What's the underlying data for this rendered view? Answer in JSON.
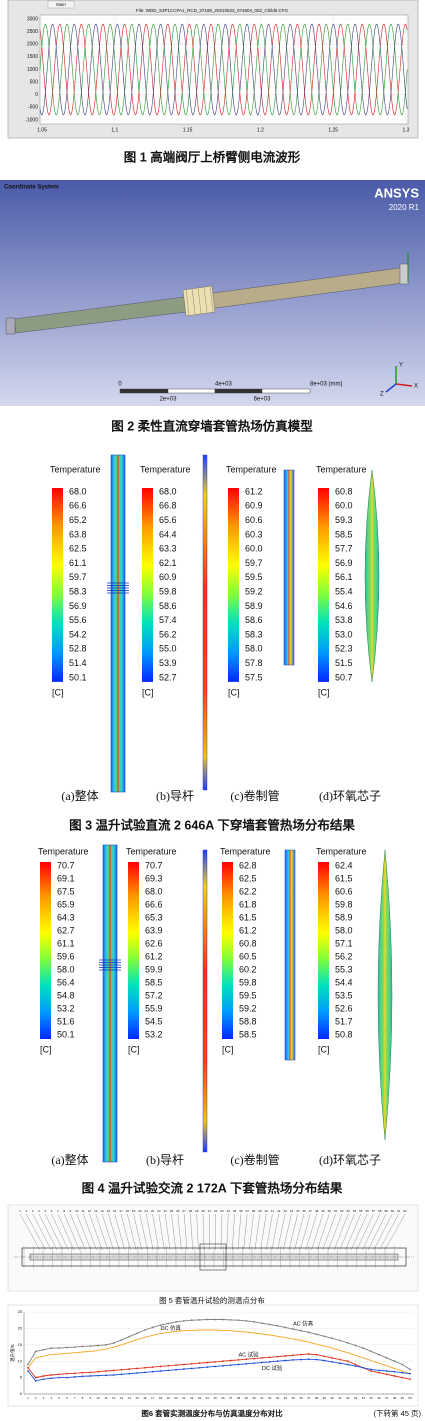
{
  "figure1": {
    "tab": "Main",
    "file_title": "File: WDD_S3P1CCPA1_RCD_37198_20210523_074804_052_Child0.CFG",
    "yticks": [
      "3000",
      "2500",
      "2000",
      "1500",
      "1000",
      "500",
      "0",
      "-500",
      "-1000"
    ],
    "xticks": [
      "1.05",
      "1.1",
      "1.15",
      "1.2",
      "1.25",
      "1.3"
    ],
    "caption": "图 1  高端阀厅上桥臂侧电流波形"
  },
  "figure2": {
    "coordinate_system": "Coordinate System",
    "brand": "ANSYS",
    "version": "2020 R1",
    "scale_top": [
      "0",
      "4e+03",
      "8e+03 (mm)"
    ],
    "scale_bottom": [
      "2e+03",
      "6e+03"
    ],
    "axes": [
      "Y",
      "X",
      "Z"
    ],
    "caption": "图 2  柔性直流穿墙套管热场仿真模型"
  },
  "figure3": {
    "panels": [
      {
        "legend_title": "Temperature",
        "values": [
          "68.0",
          "66.6",
          "65.2",
          "63.8",
          "62.5",
          "61.1",
          "59.7",
          "58.3",
          "56.9",
          "55.6",
          "54.2",
          "52.8",
          "51.4",
          "50.1"
        ],
        "unit": "[C]",
        "label": "(a)整体"
      },
      {
        "legend_title": "Temperature",
        "values": [
          "68.0",
          "66.8",
          "65.6",
          "64.4",
          "63.3",
          "62.1",
          "60.9",
          "59.8",
          "58.6",
          "57.4",
          "56.2",
          "55.0",
          "53.9",
          "52.7"
        ],
        "unit": "[C]",
        "label": "(b)导杆"
      },
      {
        "legend_title": "Temperature",
        "values": [
          "61.2",
          "60.9",
          "60.6",
          "60.3",
          "60.0",
          "59.7",
          "59.5",
          "59.2",
          "58.9",
          "58.6",
          "58.3",
          "58.0",
          "57.8",
          "57.5"
        ],
        "unit": "[C]",
        "label": "(c)卷制管"
      },
      {
        "legend_title": "Temperature",
        "values": [
          "60.8",
          "60.0",
          "59.3",
          "58.5",
          "57.7",
          "56.9",
          "56.1",
          "55.4",
          "54.6",
          "53.8",
          "53.0",
          "52.3",
          "51.5",
          "50.7"
        ],
        "unit": "[C]",
        "label": "(d)环氧芯子"
      }
    ],
    "caption": "图 3  温升试验直流 2 646A 下穿墙套管热场分布结果"
  },
  "figure4": {
    "panels": [
      {
        "legend_title": "Temperature",
        "values": [
          "70.7",
          "69.1",
          "67.5",
          "65.9",
          "64.3",
          "62.7",
          "61.1",
          "59.6",
          "58.0",
          "56.4",
          "54.8",
          "53.2",
          "51.6",
          "50.1"
        ],
        "unit": "[C]",
        "label": "(a)整体"
      },
      {
        "legend_title": "Temperature",
        "values": [
          "70.7",
          "69.3",
          "68.0",
          "66.6",
          "65.3",
          "63.9",
          "62.6",
          "61.2",
          "59.9",
          "58.5",
          "57.2",
          "55.9",
          "54.5",
          "53.2"
        ],
        "unit": "[C]",
        "label": "(b)导杆"
      },
      {
        "legend_title": "Temperature",
        "values": [
          "62.8",
          "62.5",
          "62.2",
          "61.8",
          "61.5",
          "61.2",
          "60.8",
          "60.5",
          "60.2",
          "59.8",
          "59.5",
          "59.2",
          "58.8",
          "58.5"
        ],
        "unit": "[C]",
        "label": "(c)卷制管"
      },
      {
        "legend_title": "Temperature",
        "values": [
          "62.4",
          "61.5",
          "60.6",
          "59.8",
          "58.9",
          "58.0",
          "57.1",
          "56.2",
          "55.3",
          "54.4",
          "53.5",
          "52.6",
          "51.7",
          "50.8"
        ],
        "unit": "[C]",
        "label": "(d)环氧芯子"
      }
    ],
    "caption": "图 4  温升试验交流 2 172A 下套管热场分布结果"
  },
  "figure5": {
    "points": [
      1,
      2,
      3,
      4,
      5,
      6,
      7,
      8,
      9,
      10,
      11,
      12,
      13,
      14,
      15,
      16,
      17,
      18,
      19,
      20,
      21,
      22,
      23,
      24,
      25,
      26,
      27,
      28,
      29,
      30,
      31,
      32,
      33,
      34,
      35,
      36,
      37,
      38,
      39,
      40,
      41,
      42,
      43,
      44,
      45,
      46,
      47,
      48,
      49,
      50,
      51,
      52,
      53,
      54,
      55,
      56,
      57,
      58,
      59,
      60,
      61,
      62
    ],
    "caption": "图 5  套管温升试验的测温点分布"
  },
  "figure6": {
    "type": "line",
    "y_label": "温升值/K",
    "categories": [
      1,
      2,
      3,
      4,
      5,
      6,
      7,
      8,
      9,
      10,
      11,
      12,
      13,
      14,
      15,
      16,
      17,
      18,
      19,
      20,
      21,
      22,
      23,
      24,
      25,
      26,
      27,
      28,
      29,
      30,
      31,
      32,
      33,
      34,
      35,
      36,
      37,
      38,
      39,
      40,
      41,
      42,
      43,
      44,
      45,
      46,
      47,
      48,
      49,
      50
    ],
    "ylim": [
      0,
      25
    ],
    "yticks": [
      0,
      5,
      10,
      15,
      20,
      25
    ],
    "grid": true,
    "series": [
      {
        "name": "AC 仿真",
        "color": "#7f7f7f",
        "values": [
          9,
          13,
          13.5,
          14,
          14,
          14.2,
          14.3,
          14.5,
          14.6,
          14.8,
          15,
          15.5,
          16.5,
          17.5,
          18.5,
          19.5,
          20.3,
          21,
          21.5,
          22,
          22.3,
          22.5,
          22.6,
          22.7,
          22.7,
          22.7,
          22.6,
          22.5,
          22.3,
          22,
          21.6,
          21.2,
          20.8,
          20.3,
          19.8,
          19.3,
          18.8,
          18.2,
          17.6,
          17,
          16.3,
          15.6,
          14.8,
          14,
          13,
          12,
          11,
          10,
          9,
          7.5
        ]
      },
      {
        "name": "DC 仿真",
        "color": "#f5a623",
        "values": [
          8,
          11,
          11.5,
          12,
          12.2,
          12.4,
          12.6,
          12.8,
          13,
          13.3,
          13.7,
          14.3,
          15,
          15.8,
          16.6,
          17.3,
          17.9,
          18.4,
          18.8,
          19.1,
          19.3,
          19.4,
          19.5,
          19.5,
          19.5,
          19.4,
          19.3,
          19.1,
          18.9,
          18.6,
          18.3,
          18,
          17.6,
          17.2,
          16.8,
          16.3,
          15.8,
          15.2,
          14.6,
          14,
          13.3,
          12.6,
          11.8,
          11,
          10.2,
          9.4,
          8.6,
          7.8,
          7,
          6.2
        ]
      },
      {
        "name": "AC 试验",
        "color": "#e0301e",
        "values": [
          8,
          5,
          5.5,
          5.8,
          6,
          6.2,
          6.3,
          6.5,
          6.6,
          6.8,
          7,
          7.2,
          7.4,
          7.6,
          7.8,
          8,
          8.2,
          8.4,
          8.6,
          8.8,
          9,
          9.2,
          9.4,
          9.6,
          9.8,
          10,
          10.2,
          10.4,
          10.6,
          10.8,
          11,
          11.2,
          11.4,
          11.6,
          11.8,
          12,
          12.2,
          12,
          11.5,
          11,
          10.5,
          10,
          9,
          8,
          7,
          6.5,
          6,
          5.5,
          5,
          4.5
        ]
      },
      {
        "name": "DC 试验",
        "color": "#1f4fd8",
        "values": [
          7,
          4,
          4.5,
          4.8,
          5,
          5,
          5.2,
          5.4,
          5.5,
          5.6,
          5.7,
          5.8,
          6,
          6.2,
          6.4,
          6.6,
          6.8,
          7,
          7.2,
          7.4,
          7.6,
          7.8,
          8,
          8.2,
          8.4,
          8.6,
          8.8,
          9,
          9.2,
          9.4,
          9.6,
          9.8,
          10,
          10.2,
          10.4,
          10.5,
          10.6,
          10.5,
          10.2,
          9.8,
          9.4,
          9,
          8.5,
          8,
          7.5,
          7.2,
          7,
          6.8,
          6.5,
          6.2
        ]
      }
    ],
    "caption": "图6  套管实测温度分布与仿真温度分布对比",
    "continued": "(下转第 45 页)"
  }
}
